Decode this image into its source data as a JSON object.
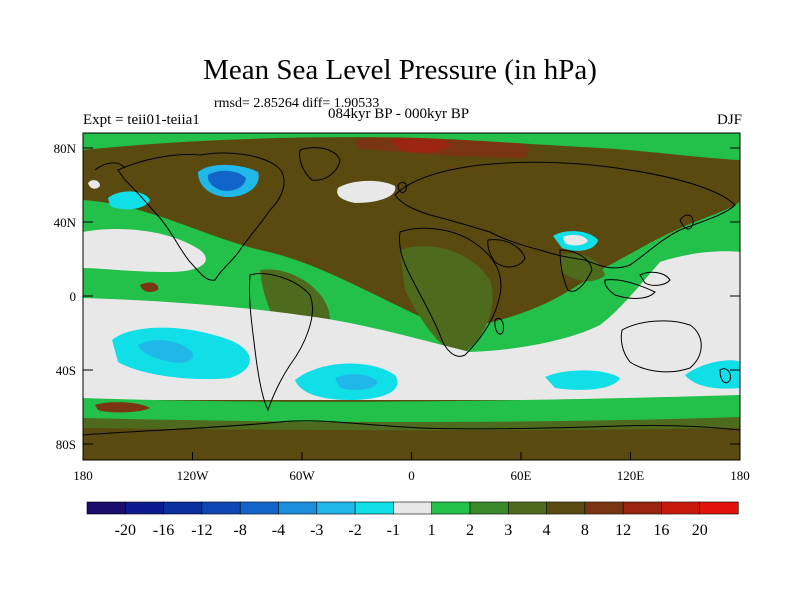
{
  "header": {
    "title": "Mean Sea Level Pressure (in hPa)",
    "stats": "rmsd= 2.85264 diff= 1.90533",
    "period": "084kyr BP - 000kyr BP",
    "experiment": "Expt = teii01-teiia1",
    "season": "DJF"
  },
  "axes": {
    "lat_labels": [
      "80N",
      "40N",
      "0",
      "40S",
      "80S"
    ],
    "lon_labels": [
      "180",
      "120W",
      "60W",
      "0",
      "60E",
      "120E",
      "180"
    ]
  },
  "colorbar": {
    "labels": [
      "-20",
      "-16",
      "-12",
      "-8",
      "-4",
      "-3",
      "-2",
      "-1",
      "1",
      "2",
      "3",
      "4",
      "8",
      "12",
      "16",
      "20"
    ],
    "colors": [
      "#1a0d6e",
      "#0a1a8c",
      "#0c2fa0",
      "#0e47b4",
      "#1265c8",
      "#1c8fdc",
      "#1fb8e8",
      "#10dfe8",
      "#e8e8e8",
      "#23c04a",
      "#3a8a2a",
      "#4e6a1c",
      "#5a4a10",
      "#7a3512",
      "#9a2510",
      "#c8180c",
      "#e0120a"
    ]
  },
  "legend_classes": {
    "low3": "#10dfe8",
    "low4": "#1fb8e8",
    "low8": "#1c8fdc",
    "low12": "#1265c8",
    "neutral": "#e8e8e8",
    "g2": "#23c04a",
    "g3": "#3a8a2a",
    "g4": "#4e6a1c",
    "b8": "#5a4a10",
    "r12": "#7a3512",
    "r16": "#9a2510"
  }
}
